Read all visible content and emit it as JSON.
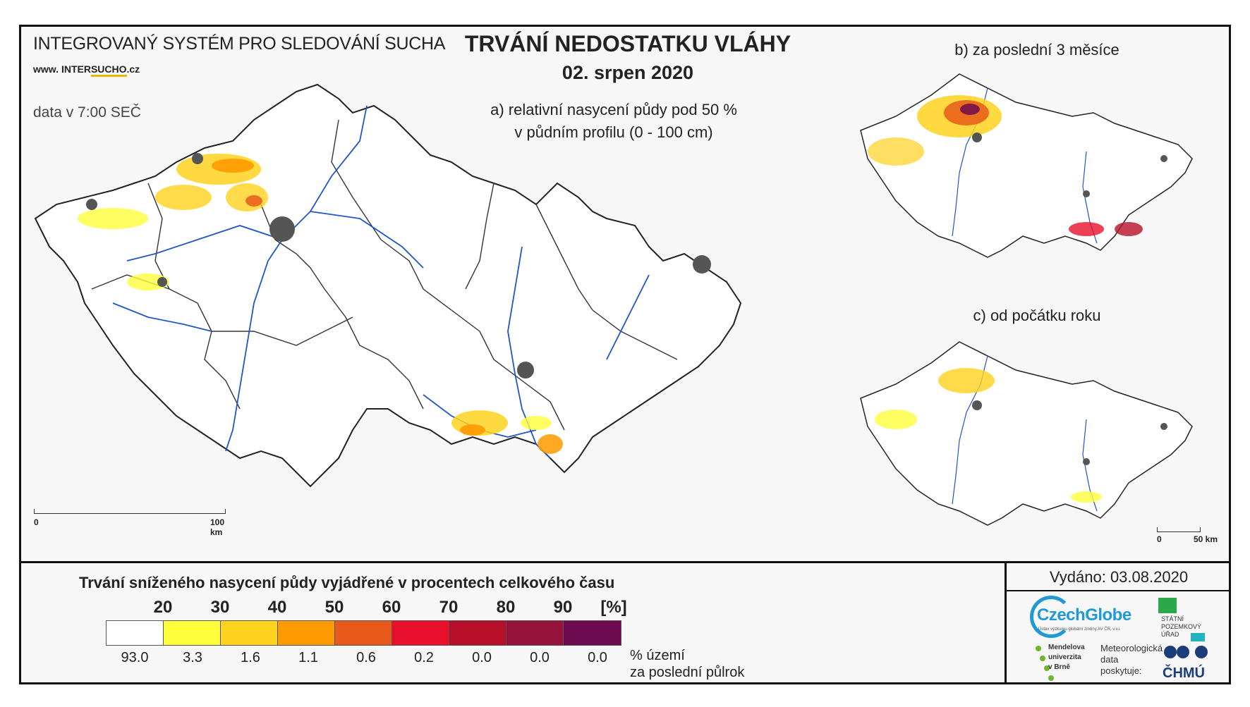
{
  "header": {
    "system_title": "INTEGROVANÝ SYSTÉM PRO SLEDOVÁNÍ SUCHA",
    "www_prefix": "www. ",
    "www_inter": "INTER",
    "www_sucho": "SUCHO",
    "www_suffix": ".cz",
    "time_note": "data v 7:00 SEČ",
    "main_title": "TRVÁNÍ NEDOSTATKU VLÁHY",
    "date": "02. srpen 2020"
  },
  "panels": {
    "a_line1": "a) relativní nasycení půdy pod 50 %",
    "a_line2": "v půdním profilu (0 - 100 cm)",
    "b": "b) za poslední 3 měsíce",
    "c": "c) od počátku roku"
  },
  "scales": {
    "main_start": "0",
    "main_end": "100 km",
    "small_start": "0",
    "small_end": "50 km"
  },
  "legend": {
    "title": "Trvání sníženého nasycení půdy vyjádřené v procentech celkového času",
    "ticks": [
      "20",
      "30",
      "40",
      "50",
      "60",
      "70",
      "80",
      "90"
    ],
    "unit": "[%]",
    "colors": [
      "#ffffff",
      "#ffff3c",
      "#ffd21e",
      "#ff9a00",
      "#e85a1a",
      "#e8102a",
      "#b8102a",
      "#96143c",
      "#6e0a50"
    ],
    "percentages": [
      "93.0",
      "3.3",
      "1.6",
      "1.1",
      "0.6",
      "0.2",
      "0.0",
      "0.0",
      "0.0"
    ],
    "pct_label_line1": "% území",
    "pct_label_line2": "za poslední půlrok"
  },
  "footer": {
    "issued": "Vydáno: 03.08.2020",
    "czechglobe_name": "CzechGlobe",
    "czechglobe_tag": "Ústav výzkumu globální změny AV ČR, v.v.i.",
    "spu_line1": "STÁTNÍ",
    "spu_line2": "POZEMKOVÝ",
    "spu_line3": "ÚŘAD",
    "mu_line1": "Mendelova",
    "mu_line2": "univerzita",
    "mu_line3": "v Brně",
    "met_line1": "Meteorologická",
    "met_line2": "data",
    "met_line3": "poskytuje:",
    "chmu_name": "ČHMÚ"
  }
}
